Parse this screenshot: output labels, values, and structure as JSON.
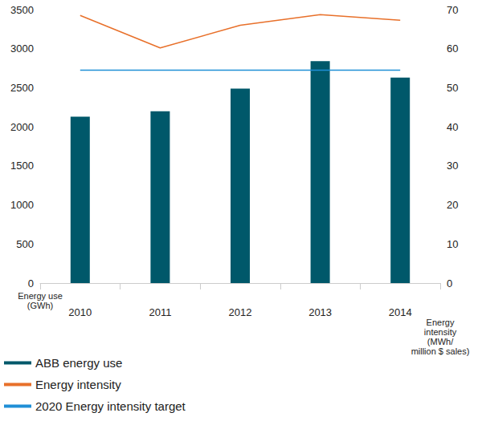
{
  "chart_data": {
    "type": "bar",
    "categories": [
      "2010",
      "2011",
      "2012",
      "2013",
      "2014"
    ],
    "y_label": "Energy use\n(GWh)",
    "y2_label": "Energy\nintensity\n(MWh/\nmillion $ sales)",
    "ylim": [
      0,
      3500
    ],
    "yticks": [
      0,
      500,
      1000,
      1500,
      2000,
      2500,
      3000,
      3500
    ],
    "y2lim": [
      0,
      70
    ],
    "y2ticks": [
      0,
      10,
      20,
      30,
      40,
      50,
      60,
      70
    ],
    "grid": false,
    "legend": "bottom",
    "series": [
      {
        "name": "ABB energy use",
        "type": "bar",
        "color": "#00586a",
        "values": [
          2130,
          2200,
          2490,
          2840,
          2630
        ]
      },
      {
        "name": "Energy intensity",
        "type": "line",
        "axis": "y2",
        "color": "#e8702a",
        "values": [
          68.5,
          60.2,
          66.0,
          68.7,
          67.3
        ]
      },
      {
        "name": "2020 Energy intensity target",
        "type": "line",
        "axis": "y2",
        "color": "#1f8fd6",
        "values": [
          54.5,
          54.5,
          54.5,
          54.5,
          54.5
        ]
      }
    ]
  }
}
